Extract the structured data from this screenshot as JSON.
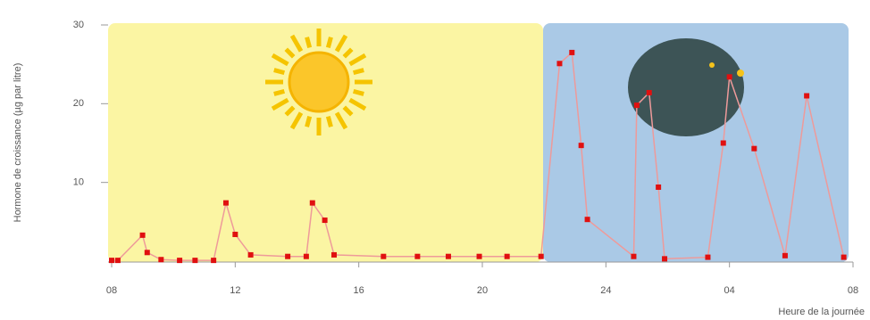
{
  "chart_data": {
    "type": "line",
    "y_label": "Hormone de croissance (µg par litre)",
    "x_label": "Heure de la journée",
    "x": [
      8.0,
      8.2,
      9.0,
      9.15,
      9.6,
      10.2,
      10.7,
      11.3,
      11.7,
      12.0,
      12.5,
      13.7,
      14.3,
      14.5,
      14.9,
      15.2,
      16.8,
      17.9,
      18.9,
      19.9,
      20.8,
      21.9,
      22.5,
      22.9,
      23.2,
      23.4,
      24.9,
      25.0,
      25.4,
      25.7,
      25.9,
      27.3,
      27.8,
      28.0,
      28.8,
      29.8,
      30.5,
      31.7
    ],
    "series": [
      {
        "color": "#e01010",
        "line_color": "#ee9a9a",
        "values": [
          0.1,
          0.1,
          3.3,
          1.1,
          0.2,
          0.1,
          0.1,
          0.1,
          7.4,
          3.4,
          0.8,
          0.6,
          0.6,
          7.4,
          5.2,
          0.8,
          0.6,
          0.6,
          0.6,
          0.6,
          0.6,
          0.6,
          25.1,
          26.5,
          14.7,
          5.3,
          0.6,
          19.8,
          21.4,
          9.4,
          0.3,
          0.5,
          15.0,
          23.4,
          14.3,
          0.7,
          21.0,
          0.5
        ]
      }
    ],
    "xlim": [
      8,
      32
    ],
    "xticks": [
      {
        "value": 8,
        "label": "08"
      },
      12,
      16,
      20,
      24,
      {
        "value": 28,
        "label": "04"
      },
      {
        "value": 32,
        "label": "08"
      }
    ],
    "ylim": [
      0,
      30
    ],
    "yticks": [
      10,
      20,
      30
    ]
  }
}
